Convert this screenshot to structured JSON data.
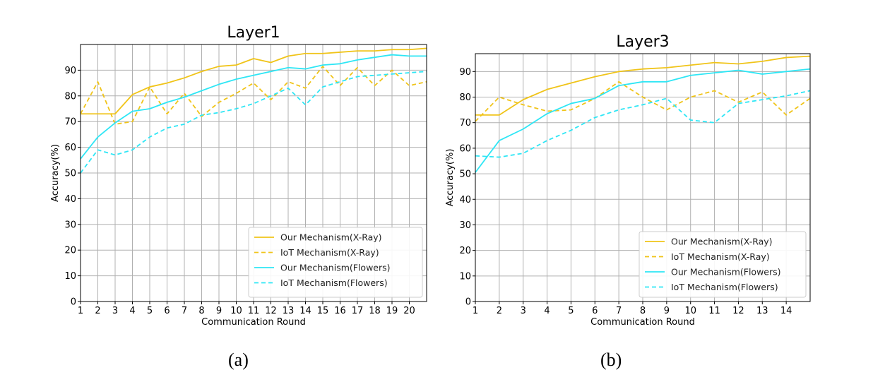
{
  "chart_data": [
    {
      "type": "line",
      "title": "Layer1",
      "xlabel": "Communication Round",
      "ylabel": "Accuracy(%)",
      "x": [
        1,
        2,
        3,
        4,
        5,
        6,
        7,
        8,
        9,
        10,
        11,
        12,
        13,
        14,
        15,
        16,
        17,
        18,
        19,
        20,
        21
      ],
      "xticks": [
        1,
        2,
        3,
        4,
        5,
        6,
        7,
        8,
        9,
        10,
        11,
        12,
        13,
        14,
        15,
        16,
        17,
        18,
        19,
        20
      ],
      "xlim": [
        1,
        21
      ],
      "ylim": [
        0,
        100
      ],
      "yticks": [
        0,
        10,
        20,
        30,
        40,
        50,
        60,
        70,
        80,
        90
      ],
      "grid": true,
      "legend": "bottom-right",
      "caption": "(a)",
      "series": [
        {
          "name": "Our Mechanism(X-Ray)",
          "color": "#f0c419",
          "dash": false,
          "values": [
            73,
            73,
            73,
            80.5,
            83.5,
            85,
            87,
            89.5,
            91.5,
            92,
            94.5,
            93,
            95.5,
            96.5,
            96.5,
            97,
            97.5,
            97.5,
            98,
            98,
            98.5
          ]
        },
        {
          "name": "IoT Mechanism(X-Ray)",
          "color": "#f0c419",
          "dash": true,
          "values": [
            73,
            85.5,
            69,
            70,
            83.5,
            73,
            81,
            72,
            77.5,
            81,
            85,
            78.5,
            85.5,
            83,
            91.5,
            84,
            91,
            84,
            90,
            84,
            85.5
          ]
        },
        {
          "name": "Our Mechanism(Flowers)",
          "color": "#2ee6f5",
          "dash": false,
          "values": [
            55.5,
            64,
            69.5,
            74,
            75,
            77.5,
            79.5,
            82,
            84.5,
            86.5,
            88,
            89.5,
            91,
            90.5,
            92,
            92.5,
            94,
            95,
            96,
            95.5,
            95.5
          ]
        },
        {
          "name": "IoT Mechanism(Flowers)",
          "color": "#2ee6f5",
          "dash": true,
          "values": [
            50,
            59,
            57,
            59,
            64,
            67.5,
            69,
            72.5,
            73.5,
            75,
            77,
            80,
            83,
            76.5,
            83.5,
            85.5,
            87.5,
            88,
            88.5,
            89,
            89.5
          ]
        }
      ]
    },
    {
      "type": "line",
      "title": "Layer3",
      "xlabel": "Communication Round",
      "ylabel": "Accuracy(%)",
      "x": [
        1,
        2,
        3,
        4,
        5,
        6,
        7,
        8,
        9,
        10,
        11,
        12,
        13,
        14,
        15
      ],
      "xticks": [
        1,
        2,
        3,
        4,
        5,
        6,
        7,
        8,
        9,
        10,
        11,
        12,
        13,
        14
      ],
      "xlim": [
        1,
        15
      ],
      "ylim": [
        0,
        97
      ],
      "yticks": [
        0,
        10,
        20,
        30,
        40,
        50,
        60,
        70,
        80,
        90
      ],
      "grid": true,
      "legend": "bottom-right",
      "caption": "(b)",
      "series": [
        {
          "name": "Our Mechanism(X-Ray)",
          "color": "#f0c419",
          "dash": false,
          "values": [
            73,
            73,
            79,
            83,
            85.5,
            88,
            90,
            91,
            91.5,
            92.5,
            93.5,
            93,
            94,
            95.5,
            96
          ]
        },
        {
          "name": "IoT Mechanism(X-Ray)",
          "color": "#f0c419",
          "dash": true,
          "values": [
            70.5,
            80,
            77,
            74.5,
            75,
            79.5,
            86,
            80,
            75,
            80,
            82.5,
            78,
            82,
            73,
            79.5
          ]
        },
        {
          "name": "Our Mechanism(Flowers)",
          "color": "#2ee6f5",
          "dash": false,
          "values": [
            50.5,
            63,
            67.5,
            73.5,
            77.5,
            79.5,
            84.5,
            86,
            86,
            88.5,
            89.5,
            90.5,
            89,
            90,
            91
          ]
        },
        {
          "name": "IoT Mechanism(Flowers)",
          "color": "#2ee6f5",
          "dash": true,
          "values": [
            57,
            56.5,
            58,
            63,
            67,
            72,
            75,
            77,
            79.5,
            71,
            70,
            77.5,
            79,
            80.5,
            82.5
          ]
        }
      ]
    }
  ]
}
